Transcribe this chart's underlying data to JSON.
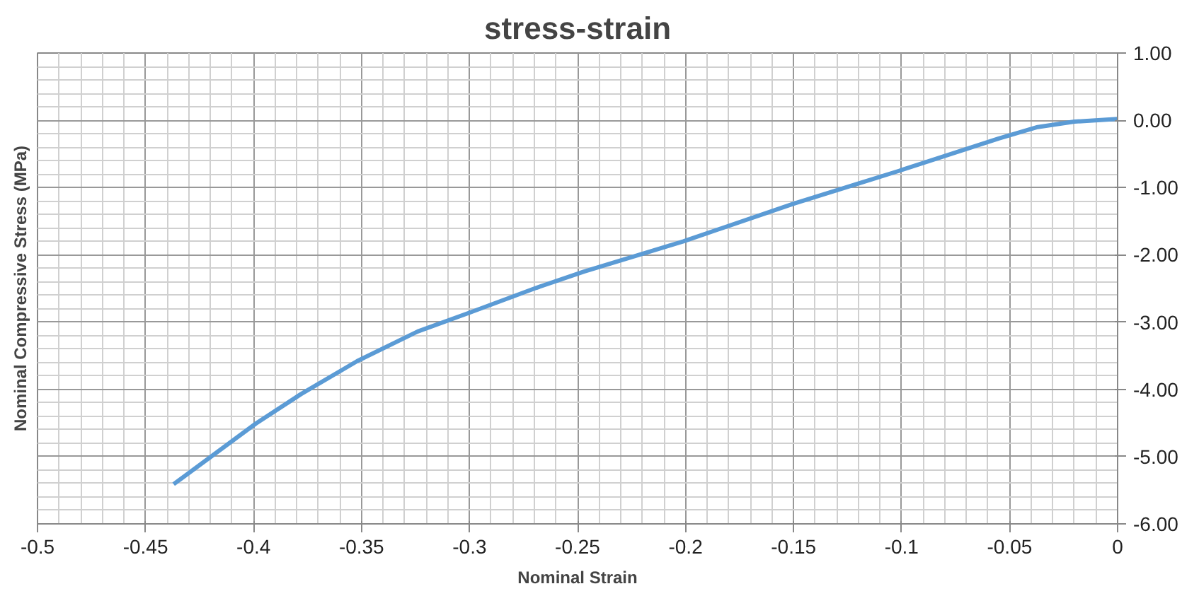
{
  "chart_data": {
    "type": "line",
    "title": "stress-strain",
    "xlabel": "Nominal Strain",
    "ylabel": "Nominal Compressive Stress (MPa)",
    "x": [
      -0.437,
      -0.399,
      -0.378,
      -0.352,
      -0.324,
      -0.3,
      -0.269,
      -0.247,
      -0.201,
      -0.15,
      -0.101,
      -0.055,
      -0.037,
      -0.02,
      0
    ],
    "series": [
      {
        "color": "#5b9bd5",
        "values": [
          -5.41,
          -4.51,
          -4.07,
          -3.58,
          -3.14,
          -2.86,
          -2.49,
          -2.25,
          -1.8,
          -1.24,
          -0.75,
          -0.27,
          -0.1,
          -0.02,
          0.02
        ]
      }
    ],
    "xlim": [
      -0.5,
      0
    ],
    "ylim": [
      -6,
      1
    ],
    "xticks": [
      -0.5,
      -0.45,
      -0.4,
      -0.35,
      -0.3,
      -0.25,
      -0.2,
      -0.15,
      -0.1,
      -0.05,
      0
    ],
    "yticks": [
      {
        "value": 1,
        "label": "1.00"
      },
      {
        "value": 0,
        "label": "0.00"
      },
      {
        "value": -1,
        "label": "-1.00"
      },
      {
        "value": -2,
        "label": "-2.00"
      },
      {
        "value": -3,
        "label": "-3.00"
      },
      {
        "value": -4,
        "label": "-4.00"
      },
      {
        "value": -5,
        "label": "-5.00"
      },
      {
        "value": -6,
        "label": "-6.00"
      }
    ],
    "grid": true,
    "marker": "none",
    "line_style": "solid"
  }
}
